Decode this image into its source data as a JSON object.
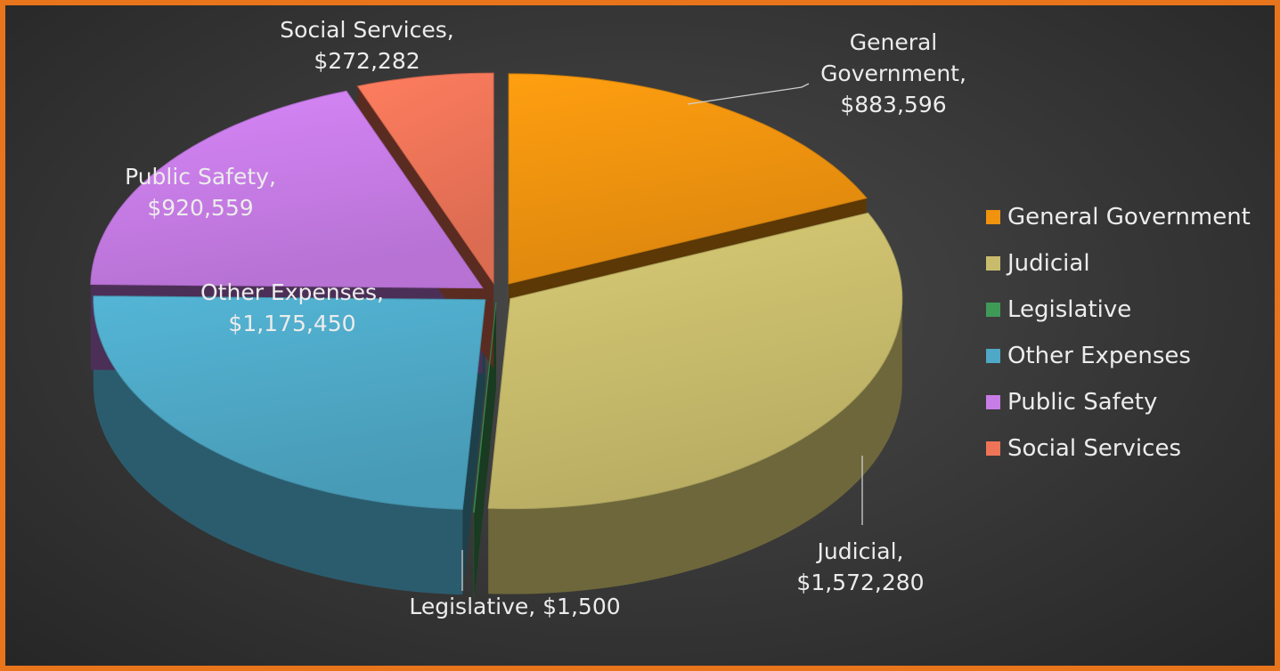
{
  "chart_data": {
    "type": "pie",
    "categories": [
      "General Government",
      "Judicial",
      "Legislative",
      "Other Expenses",
      "Public Safety",
      "Social Services"
    ],
    "values": [
      883596,
      1572280,
      1500,
      1175450,
      920559,
      272282
    ],
    "colors": [
      "#f0930f",
      "#c8bc6c",
      "#3f9a58",
      "#4ea8c6",
      "#c77ce6",
      "#ee7458"
    ],
    "data_labels": [
      [
        "General",
        "Government,",
        "$883,596"
      ],
      [
        "Judicial,",
        "$1,572,280"
      ],
      [
        "Legislative,  $1,500"
      ],
      [
        "Other Expenses,",
        "$1,175,450"
      ],
      [
        "Public Safety,",
        "$920,559"
      ],
      [
        "Social Services,",
        "$272,282"
      ]
    ],
    "legend": [
      "General Government",
      "Judicial",
      "Legislative",
      "Other Expenses",
      "Public Safety",
      "Social Services"
    ],
    "legend_position": "right",
    "style": "3d-exploded"
  }
}
